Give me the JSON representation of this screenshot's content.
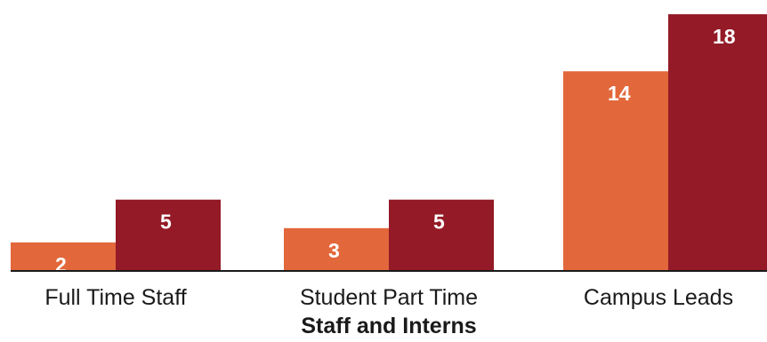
{
  "chart_data": {
    "type": "bar",
    "categories": [
      "Full Time Staff",
      "Student Part Time",
      "Campus Leads"
    ],
    "series": [
      {
        "values": [
          2,
          3,
          14
        ],
        "color": "#e2673b"
      },
      {
        "values": [
          5,
          5,
          18
        ],
        "color": "#931a26"
      }
    ],
    "xlabel": "Staff and Interns",
    "ylabel": "",
    "ylim": [
      0,
      18.5
    ],
    "grid": false,
    "legend": "none"
  }
}
